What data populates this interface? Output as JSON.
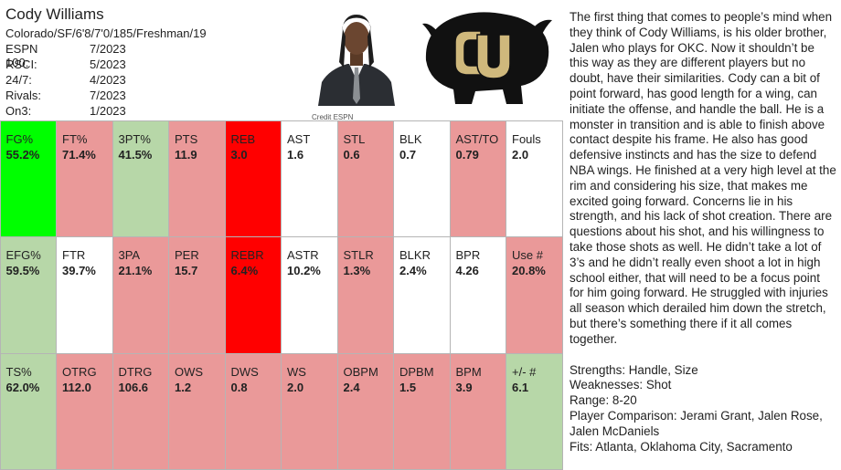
{
  "player": {
    "name": "Cody Williams",
    "bio": "Colorado/SF/6'8/7'0/185/Freshman/19",
    "rankings": [
      {
        "label": "ESPN 100:",
        "value": "7/2023"
      },
      {
        "label": "RSCI:",
        "value": "5/2023"
      },
      {
        "label": "24/7:",
        "value": "4/2023"
      },
      {
        "label": "Rivals:",
        "value": "7/2023"
      },
      {
        "label": "On3:",
        "value": "1/2023"
      }
    ],
    "photo_credit": "Credit ESPN"
  },
  "colors": {
    "bright_green": "#00ff00",
    "light_green": "#b7d7a8",
    "pink": "#ea9999",
    "red": "#ff0000",
    "white": "#ffffff"
  },
  "stats": [
    {
      "label": "FG%",
      "value": "55.2%",
      "color": "bright_green"
    },
    {
      "label": "FT%",
      "value": "71.4%",
      "color": "pink"
    },
    {
      "label": "3PT%",
      "value": "41.5%",
      "color": "light_green"
    },
    {
      "label": "PTS",
      "value": "11.9",
      "color": "pink"
    },
    {
      "label": "REB",
      "value": "3.0",
      "color": "red"
    },
    {
      "label": "AST",
      "value": "1.6",
      "color": "white"
    },
    {
      "label": "STL",
      "value": "0.6",
      "color": "pink"
    },
    {
      "label": "BLK",
      "value": "0.7",
      "color": "white"
    },
    {
      "label": "AST/TO",
      "value": "0.79",
      "color": "pink"
    },
    {
      "label": "Fouls",
      "value": "2.0",
      "color": "white"
    },
    {
      "label": "EFG%",
      "value": "59.5%",
      "color": "light_green"
    },
    {
      "label": "FTR",
      "value": "39.7%",
      "color": "white"
    },
    {
      "label": "3PA",
      "value": "21.1%",
      "color": "pink"
    },
    {
      "label": "PER",
      "value": "15.7",
      "color": "pink"
    },
    {
      "label": "REBR",
      "value": "6.4%",
      "color": "red"
    },
    {
      "label": "ASTR",
      "value": "10.2%",
      "color": "white"
    },
    {
      "label": "STLR",
      "value": "1.3%",
      "color": "pink"
    },
    {
      "label": "BLKR",
      "value": "2.4%",
      "color": "white"
    },
    {
      "label": "BPR",
      "value": "4.26",
      "color": "white"
    },
    {
      "label": "Use #",
      "value": "20.8%",
      "color": "pink"
    },
    {
      "label": "TS%",
      "value": "62.0%",
      "color": "light_green"
    },
    {
      "label": "OTRG",
      "value": "112.0",
      "color": "pink"
    },
    {
      "label": "DTRG",
      "value": "106.6",
      "color": "pink"
    },
    {
      "label": "OWS",
      "value": "1.2",
      "color": "pink"
    },
    {
      "label": "DWS",
      "value": "0.8",
      "color": "pink"
    },
    {
      "label": "WS",
      "value": "2.0",
      "color": "pink"
    },
    {
      "label": "OBPM",
      "value": "2.4",
      "color": "pink"
    },
    {
      "label": "DPBM",
      "value": "1.5",
      "color": "pink"
    },
    {
      "label": "BPM",
      "value": "3.9",
      "color": "pink"
    },
    {
      "label": "+/- #",
      "value": "6.1",
      "color": "light_green"
    }
  ],
  "scouting": {
    "paragraph": "The first thing that comes to people’s mind when they think of Cody Williams, is his older brother, Jalen who plays for OKC. Now it shouldn’t be this way as they are different players but no doubt, have their similarities. Cody can a bit of point forward, has good length for a wing, can initiate the offense, and handle the ball. He is a monster in transition and is able to finish above contact despite his frame.  He also has good defensive instincts and has the size to defend NBA wings. He finished at a very high level at the rim and considering his size, that makes me excited going forward. Concerns lie in his strength, and his lack of shot creation. There are questions about his shot, and his willingness to take those shots as well. He didn’t take a lot of 3’s and he didn’t really even shoot a lot in high school either, that will need to be a focus point for him going forward. He struggled with injuries all season which derailed him down the stretch, but there’s something there if it all comes together.",
    "strengths": "Strengths: Handle, Size",
    "weaknesses": "Weaknesses: Shot",
    "range": "Range: 8-20",
    "comparison": "Player Comparison: Jerami Grant, Jalen Rose, Jalen McDaniels",
    "fits": "Fits: Atlanta, Oklahoma City, Sacramento"
  }
}
